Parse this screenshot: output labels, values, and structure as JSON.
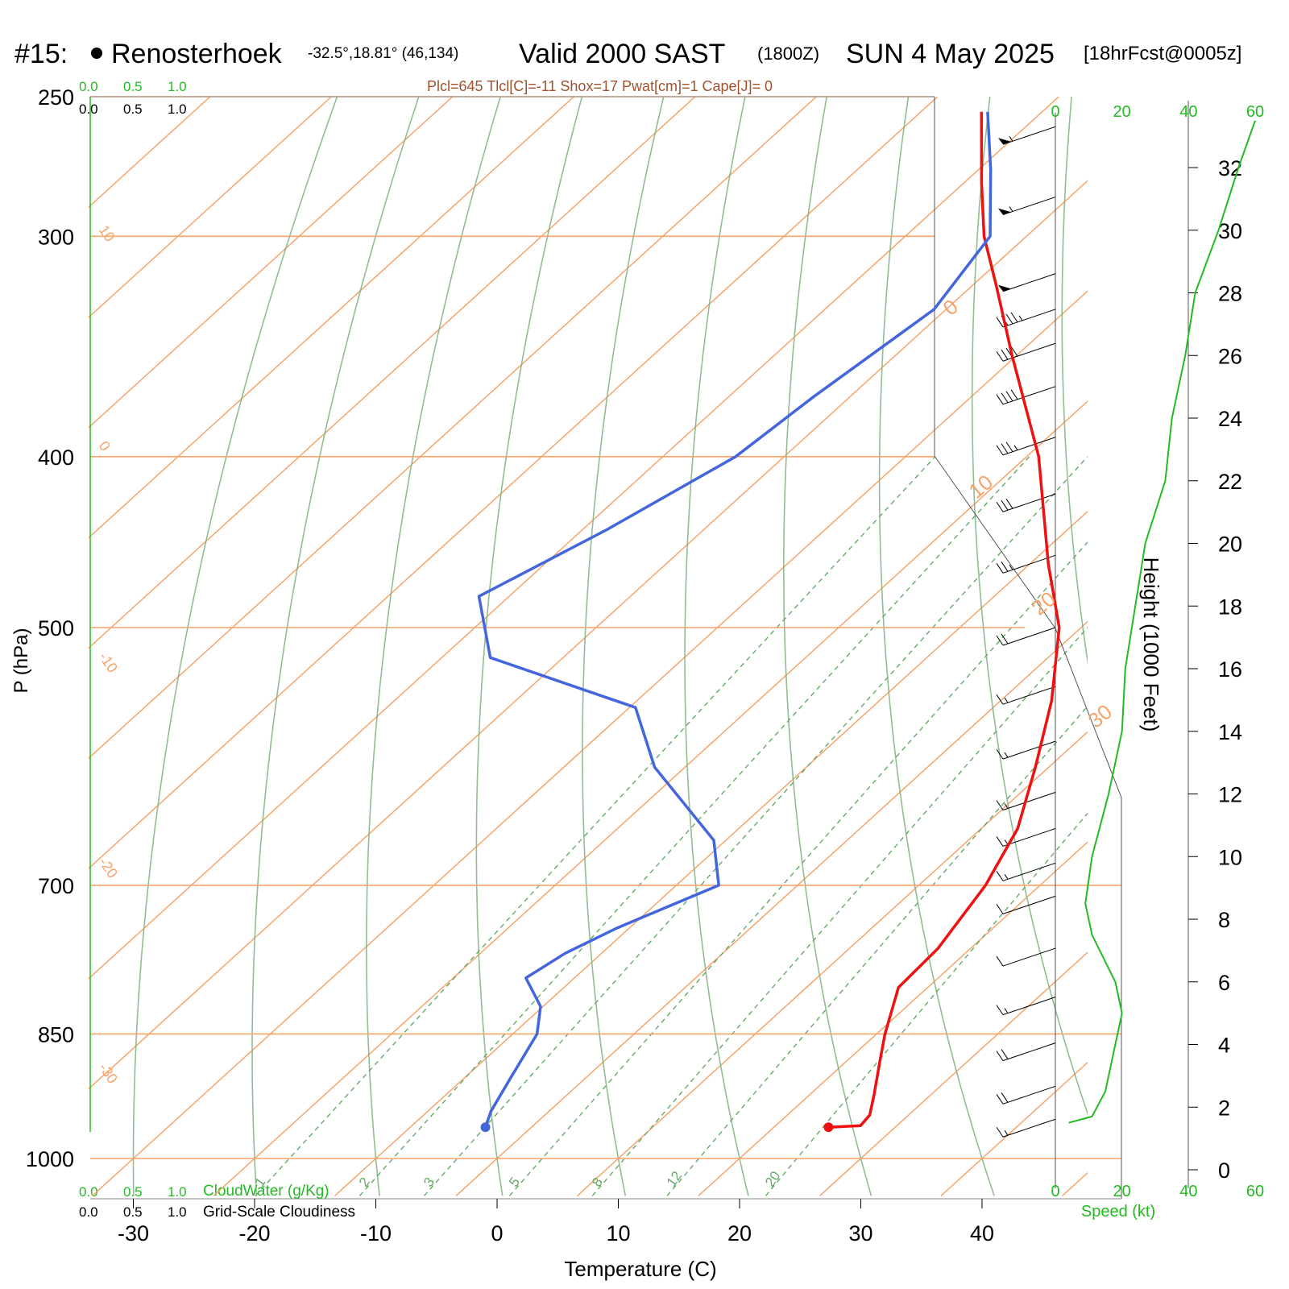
{
  "header": {
    "station_num": "#15:",
    "station_name": "Renosterhoek",
    "coords": "-32.5°,18.81° (46,134)",
    "valid": "Valid 2000 SAST",
    "zulu": "(1800Z)",
    "date": "SUN 4 May 2025",
    "fcst": "[18hrFcst@0005z]",
    "indices": "Plcl=645 Tlcl[C]=-11 Shox=17 Pwat[cm]=1 Cape[J]= 0"
  },
  "cloud_scales": {
    "top_green": [
      "0.0",
      "0.5",
      "1.0"
    ],
    "top_black": [
      "0.0",
      "0.5",
      "1.0"
    ],
    "bottom_green": [
      "0.0",
      "0.5",
      "1.0"
    ],
    "bottom_black": [
      "0.0",
      "0.5",
      "1.0"
    ],
    "cloudwater_label": "CloudWater (g/Kg)",
    "cloudiness_label": "Grid-Scale Cloudiness"
  },
  "colors": {
    "temperature": "#ee1111",
    "dewpoint": "#4466dd",
    "isotherm": "#f7a46a",
    "dry_adiabat": "#7fb27f",
    "mixing_ratio": "#66aa66",
    "wind_speed": "#22bb22",
    "axis_green": "#22bb22",
    "indices_text": "#a0522d"
  },
  "chart_data": {
    "type": "skew-t",
    "xlabel": "Temperature (C)",
    "ylabel": "P (hPa)",
    "right_label": "Height (1000 Feet)",
    "speed_label": "Speed (kt)",
    "pressure_ticks": [
      250,
      300,
      400,
      500,
      700,
      850,
      1000
    ],
    "temperature_ticks": [
      -30,
      -20,
      -10,
      0,
      10,
      20,
      30,
      40
    ],
    "height_ticks_kft": [
      0,
      2,
      4,
      6,
      8,
      10,
      12,
      14,
      16,
      18,
      20,
      22,
      24,
      26,
      28,
      30,
      32
    ],
    "speed_ticks_kt": [
      0,
      20,
      40,
      60
    ],
    "isotherm_labels": [
      "-30",
      "-20",
      "-10",
      "0",
      "10",
      "20",
      "30",
      "10",
      "0",
      "10",
      "20",
      "30"
    ],
    "mixing_ratio_labels": [
      "1",
      "2",
      "3",
      "5",
      "8",
      "12",
      "20"
    ],
    "temperature_profile": [
      {
        "p": 960,
        "t": 24.5
      },
      {
        "p": 958,
        "t": 27.0
      },
      {
        "p": 945,
        "t": 26.8
      },
      {
        "p": 920,
        "t": 25.3
      },
      {
        "p": 880,
        "t": 22.7
      },
      {
        "p": 850,
        "t": 20.7
      },
      {
        "p": 800,
        "t": 17.6
      },
      {
        "p": 760,
        "t": 17.3
      },
      {
        "p": 700,
        "t": 15.5
      },
      {
        "p": 650,
        "t": 13.0
      },
      {
        "p": 600,
        "t": 8.9
      },
      {
        "p": 550,
        "t": 4.2
      },
      {
        "p": 500,
        "t": -1.8
      },
      {
        "p": 460,
        "t": -8.5
      },
      {
        "p": 400,
        "t": -19.0
      },
      {
        "p": 350,
        "t": -30.5
      },
      {
        "p": 320,
        "t": -38.0
      },
      {
        "p": 300,
        "t": -43.5
      },
      {
        "p": 280,
        "t": -48.5
      },
      {
        "p": 255,
        "t": -55.0
      }
    ],
    "dewpoint_profile": [
      {
        "p": 960,
        "td": -3.8
      },
      {
        "p": 940,
        "td": -4.8
      },
      {
        "p": 900,
        "td": -6.2
      },
      {
        "p": 850,
        "td": -8.0
      },
      {
        "p": 820,
        "td": -10.2
      },
      {
        "p": 790,
        "td": -14.0
      },
      {
        "p": 765,
        "td": -13.0
      },
      {
        "p": 740,
        "td": -11.0
      },
      {
        "p": 700,
        "td": -6.5
      },
      {
        "p": 660,
        "td": -11.0
      },
      {
        "p": 600,
        "td": -22.5
      },
      {
        "p": 555,
        "td": -29.5
      },
      {
        "p": 520,
        "td": -46.0
      },
      {
        "p": 480,
        "td": -52.5
      },
      {
        "p": 440,
        "td": -48.0
      },
      {
        "p": 400,
        "td": -44.0
      },
      {
        "p": 370,
        "td": -43.0
      },
      {
        "p": 330,
        "td": -41.0
      },
      {
        "p": 300,
        "td": -43.0
      },
      {
        "p": 275,
        "td": -49.0
      },
      {
        "p": 255,
        "td": -54.5
      }
    ],
    "wind_speed_profile": [
      {
        "h": 1.5,
        "spd": 4
      },
      {
        "h": 1.7,
        "spd": 11
      },
      {
        "h": 2.5,
        "spd": 15
      },
      {
        "h": 4.0,
        "spd": 18
      },
      {
        "h": 5.0,
        "spd": 20
      },
      {
        "h": 6.0,
        "spd": 18
      },
      {
        "h": 7.5,
        "spd": 11
      },
      {
        "h": 8.5,
        "spd": 9
      },
      {
        "h": 10.0,
        "spd": 11
      },
      {
        "h": 12.0,
        "spd": 16
      },
      {
        "h": 14.0,
        "spd": 20
      },
      {
        "h": 16.0,
        "spd": 21
      },
      {
        "h": 18.0,
        "spd": 24
      },
      {
        "h": 20.0,
        "spd": 27
      },
      {
        "h": 22.0,
        "spd": 33
      },
      {
        "h": 24.0,
        "spd": 35
      },
      {
        "h": 26.0,
        "spd": 39
      },
      {
        "h": 28.0,
        "spd": 42
      },
      {
        "h": 30.0,
        "spd": 49
      },
      {
        "h": 32.0,
        "spd": 55
      },
      {
        "h": 33.5,
        "spd": 60
      }
    ],
    "wind_barbs": [
      {
        "p": 260,
        "spd": 55
      },
      {
        "p": 285,
        "spd": 55
      },
      {
        "p": 315,
        "spd": 50
      },
      {
        "p": 330,
        "spd": 45
      },
      {
        "p": 345,
        "spd": 40
      },
      {
        "p": 365,
        "spd": 40
      },
      {
        "p": 390,
        "spd": 35
      },
      {
        "p": 420,
        "spd": 30
      },
      {
        "p": 455,
        "spd": 25
      },
      {
        "p": 500,
        "spd": 20
      },
      {
        "p": 540,
        "spd": 15
      },
      {
        "p": 580,
        "spd": 15
      },
      {
        "p": 620,
        "spd": 15
      },
      {
        "p": 650,
        "spd": 15
      },
      {
        "p": 680,
        "spd": 15
      },
      {
        "p": 710,
        "spd": 10
      },
      {
        "p": 760,
        "spd": 10
      },
      {
        "p": 810,
        "spd": 15
      },
      {
        "p": 860,
        "spd": 20
      },
      {
        "p": 910,
        "spd": 20
      },
      {
        "p": 950,
        "spd": 15
      }
    ]
  }
}
